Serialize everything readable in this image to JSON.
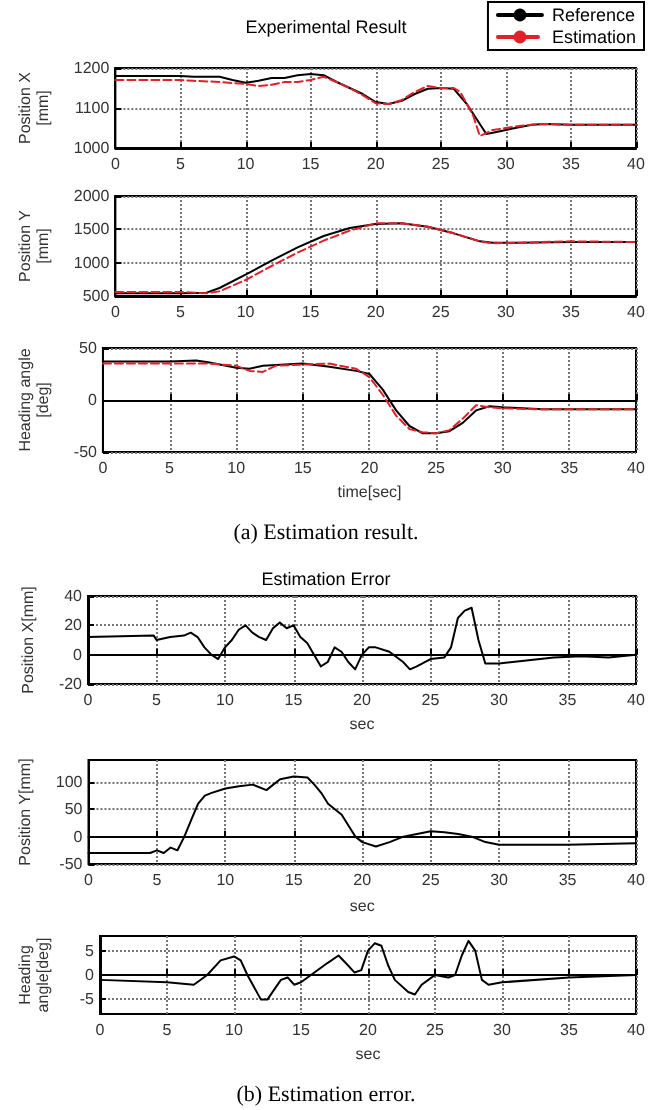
{
  "chart_data": [
    {
      "type": "line",
      "title": "Experimental Result",
      "ylabel": "Position X [mm]",
      "xlim": [
        0,
        40
      ],
      "xticks": [
        0,
        5,
        10,
        15,
        20,
        25,
        30,
        35,
        40
      ],
      "ylim": [
        1000,
        1200
      ],
      "yticks": [
        1000,
        1100,
        1200
      ],
      "grid": true,
      "legend": "top right",
      "marker": "none",
      "series": [
        {
          "name": "Reference",
          "color": "#000000",
          "line_style": "solid",
          "x": [
            0,
            5,
            6,
            8,
            9,
            10,
            11,
            12,
            13,
            14,
            15,
            16,
            17,
            18,
            19,
            20,
            21,
            22,
            23,
            24,
            25,
            26,
            27,
            28,
            28.5,
            29,
            30,
            31,
            32,
            33,
            35,
            40
          ],
          "values": [
            1180,
            1180,
            1178,
            1178,
            1170,
            1163,
            1168,
            1175,
            1175,
            1182,
            1185,
            1182,
            1165,
            1150,
            1135,
            1115,
            1110,
            1118,
            1135,
            1148,
            1150,
            1148,
            1110,
            1060,
            1035,
            1038,
            1045,
            1052,
            1058,
            1060,
            1058,
            1058
          ]
        },
        {
          "name": "Estimation",
          "color": "#e0202a",
          "line_style": "dashed",
          "x": [
            0,
            5,
            6,
            8,
            10,
            11,
            12,
            13,
            14,
            15,
            16,
            17,
            18,
            19,
            20,
            21,
            22,
            23,
            24,
            25,
            26,
            26.5,
            27.5,
            28,
            29,
            30,
            31,
            32,
            33,
            35,
            40
          ],
          "values": [
            1170,
            1170,
            1168,
            1165,
            1160,
            1155,
            1158,
            1165,
            1165,
            1170,
            1178,
            1165,
            1150,
            1132,
            1112,
            1110,
            1120,
            1140,
            1155,
            1150,
            1150,
            1140,
            1080,
            1030,
            1045,
            1050,
            1055,
            1058,
            1060,
            1058,
            1058
          ]
        }
      ]
    },
    {
      "type": "line",
      "ylabel": "Position Y [mm]",
      "xlim": [
        0,
        40
      ],
      "xticks": [
        0,
        5,
        10,
        15,
        20,
        25,
        30,
        35,
        40
      ],
      "ylim": [
        500,
        2000
      ],
      "yticks": [
        500,
        1000,
        1500,
        2000
      ],
      "grid": true,
      "marker": "none",
      "series": [
        {
          "color": "#000000",
          "line_style": "solid",
          "x": [
            0,
            5,
            7,
            8,
            10,
            12,
            14,
            16,
            18,
            20,
            22,
            24,
            26,
            28,
            29,
            31,
            35,
            40
          ],
          "values": [
            540,
            540,
            550,
            620,
            820,
            1030,
            1230,
            1400,
            1520,
            1580,
            1590,
            1540,
            1440,
            1320,
            1300,
            1300,
            1310,
            1310
          ]
        },
        {
          "color": "#e0202a",
          "line_style": "dashed",
          "x": [
            0,
            5,
            7,
            8,
            10,
            12,
            14,
            16,
            18,
            20,
            22,
            24,
            26,
            28,
            29,
            31,
            35,
            40
          ],
          "values": [
            560,
            560,
            540,
            570,
            740,
            950,
            1150,
            1330,
            1480,
            1590,
            1590,
            1540,
            1440,
            1320,
            1290,
            1300,
            1320,
            1310
          ]
        }
      ]
    },
    {
      "type": "line",
      "ylabel": "Heading angle [deg]",
      "xlabel": "time[sec]",
      "xlim": [
        0,
        40
      ],
      "xticks": [
        0,
        5,
        10,
        15,
        20,
        25,
        30,
        35,
        40
      ],
      "ylim": [
        -50,
        50
      ],
      "yticks": [
        -50,
        0,
        50
      ],
      "grid": true,
      "marker": "none",
      "annotations": [
        "(a) Estimation result."
      ],
      "series": [
        {
          "color": "#000000",
          "line_style": "solid",
          "x": [
            0,
            5,
            7,
            8,
            10,
            11,
            12,
            15,
            17,
            19,
            20,
            21,
            22,
            23,
            24,
            25,
            26,
            27,
            28,
            29,
            30,
            33,
            40
          ],
          "values": [
            37,
            37,
            38,
            36,
            31,
            30,
            33,
            35,
            32,
            28,
            25,
            10,
            -10,
            -25,
            -32,
            -32,
            -30,
            -22,
            -10,
            -6,
            -7,
            -9,
            -9
          ]
        },
        {
          "color": "#e0202a",
          "line_style": "dashed",
          "x": [
            0,
            5,
            8,
            9,
            10,
            11,
            12,
            13,
            15,
            17,
            19,
            20,
            21,
            22,
            23,
            24,
            25,
            26,
            27,
            28,
            29,
            30,
            33,
            40
          ],
          "values": [
            35,
            35,
            35,
            34,
            33,
            28,
            27,
            33,
            34,
            35,
            30,
            22,
            5,
            -15,
            -28,
            -31,
            -32,
            -29,
            -18,
            -5,
            -7,
            -8,
            -9,
            -9
          ]
        }
      ]
    },
    {
      "type": "line",
      "title": "Estimation Error",
      "ylabel": "Position X[mm]",
      "xlabel": "sec",
      "xlim": [
        0,
        40
      ],
      "xticks": [
        0,
        5,
        10,
        15,
        20,
        25,
        30,
        35,
        40
      ],
      "ylim": [
        -20,
        40
      ],
      "yticks": [
        -20,
        0,
        20,
        40
      ],
      "grid": true,
      "marker": "none",
      "series": [
        {
          "color": "#000000",
          "line_style": "solid",
          "x": [
            0,
            4.8,
            5,
            6,
            7,
            7.5,
            8,
            8.5,
            9,
            9.5,
            10,
            10.5,
            11,
            11.5,
            12,
            12.5,
            13,
            13.5,
            14,
            14.5,
            15,
            15.5,
            16,
            16.5,
            17,
            17.5,
            18,
            18.5,
            19,
            19.5,
            20,
            20.5,
            21,
            22,
            23,
            23.5,
            24,
            25,
            26,
            26.5,
            27,
            27.5,
            28,
            28.5,
            29,
            30,
            32,
            34,
            36,
            38,
            40
          ],
          "values": [
            12,
            13,
            10,
            12,
            13,
            15,
            12,
            5,
            0,
            -3,
            5,
            10,
            17,
            20,
            15,
            12,
            10,
            18,
            22,
            18,
            20,
            12,
            8,
            0,
            -8,
            -5,
            5,
            2,
            -5,
            -10,
            0,
            5,
            5,
            2,
            -5,
            -10,
            -8,
            -3,
            -2,
            5,
            25,
            30,
            32,
            10,
            -6,
            -6,
            -4,
            -2,
            -1,
            -2,
            0
          ]
        }
      ]
    },
    {
      "type": "line",
      "ylabel": "Position Y[mm]",
      "xlabel": "sec",
      "xlim": [
        0,
        40
      ],
      "xticks": [
        0,
        5,
        10,
        15,
        20,
        25,
        30,
        35,
        40
      ],
      "ylim": [
        -50,
        140
      ],
      "yticks": [
        -50,
        0,
        50,
        100
      ],
      "grid": true,
      "marker": "none",
      "series": [
        {
          "color": "#000000",
          "line_style": "solid",
          "x": [
            0,
            4.5,
            5,
            5.5,
            6,
            6.5,
            7,
            7.5,
            8,
            8.5,
            9,
            10,
            11,
            12,
            13,
            13.5,
            14,
            15,
            16,
            16.5,
            17,
            17.5,
            18,
            18.5,
            19,
            19.5,
            20,
            21,
            22,
            23,
            24,
            25,
            26,
            27,
            28,
            29,
            30,
            35,
            40
          ],
          "values": [
            -30,
            -30,
            -25,
            -30,
            -20,
            -25,
            0,
            30,
            60,
            75,
            80,
            88,
            92,
            95,
            85,
            95,
            105,
            110,
            108,
            95,
            80,
            60,
            50,
            40,
            20,
            0,
            -10,
            -18,
            -10,
            0,
            5,
            10,
            8,
            5,
            0,
            -10,
            -15,
            -15,
            -12
          ]
        }
      ]
    },
    {
      "type": "line",
      "ylabel": "Heading angle[deg]",
      "xlabel": "sec",
      "xlim": [
        0,
        40
      ],
      "xticks": [
        0,
        5,
        10,
        15,
        20,
        25,
        30,
        35,
        40
      ],
      "ylim": [
        -8,
        8
      ],
      "yticks": [
        -5,
        0,
        5
      ],
      "grid": true,
      "marker": "none",
      "annotations": [
        "(b) Estimation error."
      ],
      "series": [
        {
          "color": "#000000",
          "line_style": "solid",
          "x": [
            0,
            5,
            7,
            8,
            9,
            10,
            10.5,
            11,
            12,
            12.5,
            13.5,
            14,
            14.5,
            15,
            16,
            17,
            17.8,
            18.5,
            19,
            19.5,
            20,
            20.5,
            21,
            21.5,
            22,
            23,
            23.5,
            24,
            24.5,
            25,
            26,
            26.5,
            27,
            27.5,
            28,
            28.5,
            29,
            30,
            35,
            40
          ],
          "values": [
            -1,
            -1.5,
            -2,
            0,
            3,
            3.8,
            3,
            0,
            -5,
            -5,
            -1,
            -0.5,
            -2,
            -1.5,
            0.5,
            2.5,
            4,
            2,
            0.5,
            1,
            5,
            6.5,
            6,
            2,
            -1,
            -3.5,
            -4,
            -2,
            -1,
            0,
            -0.5,
            0,
            4,
            7,
            5,
            -1,
            -2,
            -1.5,
            -0.5,
            0
          ]
        }
      ]
    }
  ]
}
